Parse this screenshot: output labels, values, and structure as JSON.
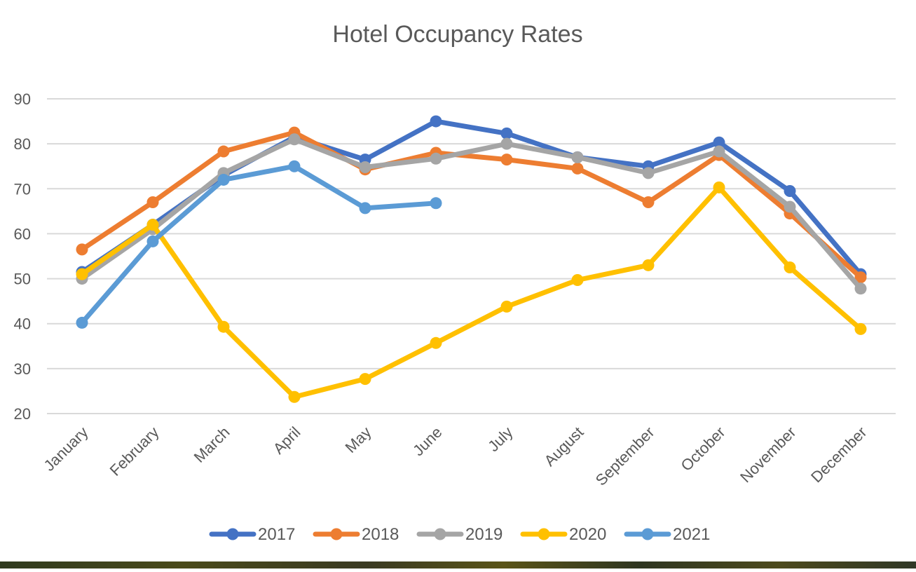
{
  "chart_data": {
    "type": "line",
    "title": "Hotel Occupancy Rates",
    "xlabel": "",
    "ylabel": "",
    "categories": [
      "January",
      "February",
      "March",
      "April",
      "May",
      "June",
      "July",
      "August",
      "September",
      "October",
      "November",
      "December"
    ],
    "ylim": [
      20,
      90
    ],
    "yticks": [
      "20",
      "30",
      "40",
      "50",
      "60",
      "70",
      "80",
      "90"
    ],
    "grid": true,
    "legend_position": "bottom",
    "series": [
      {
        "name": "2017",
        "color": "#4472C4",
        "values": [
          51.5,
          62,
          73,
          81.5,
          76.5,
          85,
          82.3,
          77,
          75,
          80.3,
          69.5,
          51
        ]
      },
      {
        "name": "2018",
        "color": "#ED7D31",
        "values": [
          56.5,
          67,
          78.3,
          82.5,
          74.3,
          78,
          76.5,
          74.5,
          67,
          77.5,
          64.5,
          50.3
        ]
      },
      {
        "name": "2019",
        "color": "#A5A5A5",
        "values": [
          50,
          61,
          73.5,
          81,
          74.8,
          76.7,
          80,
          77,
          73.5,
          78.3,
          66,
          47.8
        ]
      },
      {
        "name": "2020",
        "color": "#FFC000",
        "values": [
          51,
          62,
          39.3,
          23.7,
          27.7,
          35.7,
          43.8,
          49.7,
          53,
          70.3,
          52.5,
          38.8
        ]
      },
      {
        "name": "2021",
        "color": "#5B9BD5",
        "values": [
          40.2,
          58.3,
          72,
          75,
          65.7,
          66.8,
          null,
          null,
          null,
          null,
          null,
          null
        ]
      }
    ]
  }
}
